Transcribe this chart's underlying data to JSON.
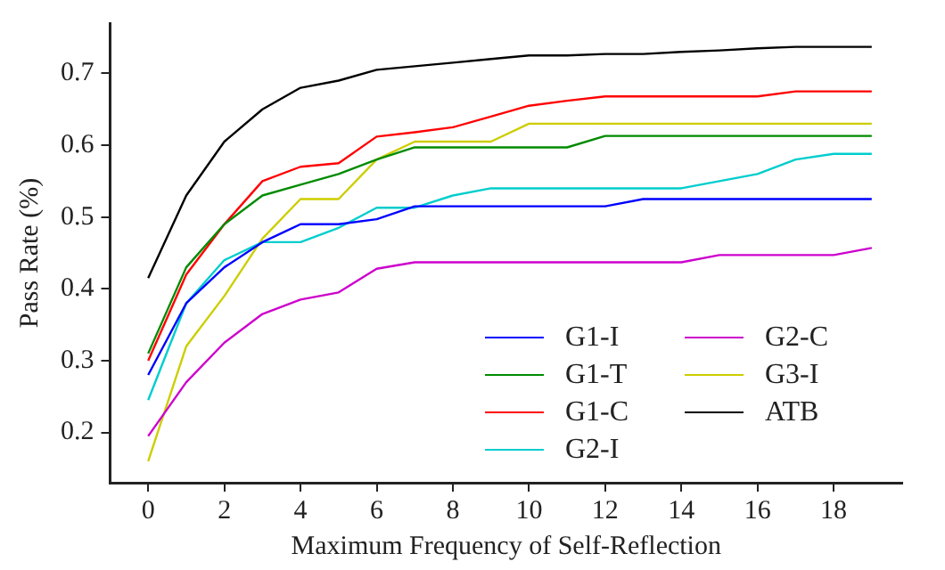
{
  "chart_data": {
    "type": "line",
    "xlabel": "Maximum Frequency of Self-Reflection",
    "ylabel": "Pass Rate (%)",
    "x": [
      0,
      1,
      2,
      3,
      4,
      5,
      6,
      7,
      8,
      9,
      10,
      11,
      12,
      13,
      14,
      15,
      16,
      17,
      18,
      19
    ],
    "xlim": [
      -1,
      19.8
    ],
    "xticks": [
      0,
      2,
      4,
      6,
      8,
      10,
      12,
      14,
      16,
      18
    ],
    "ylim": [
      0.13,
      0.77
    ],
    "yticks": [
      0.2,
      0.3,
      0.4,
      0.5,
      0.6,
      0.7
    ],
    "grid": false,
    "legend": "bottom right",
    "marker": "none",
    "line_style": "solid",
    "series": [
      {
        "name": "G1-I",
        "color": "#0000ff",
        "values": [
          0.28,
          0.38,
          0.43,
          0.465,
          0.49,
          0.49,
          0.497,
          0.515,
          0.515,
          0.515,
          0.515,
          0.515,
          0.515,
          0.525,
          0.525,
          0.525,
          0.525,
          0.525,
          0.525,
          0.525
        ]
      },
      {
        "name": "G1-T",
        "color": "#008b00",
        "values": [
          0.31,
          0.43,
          0.49,
          0.53,
          0.545,
          0.56,
          0.58,
          0.597,
          0.597,
          0.597,
          0.597,
          0.597,
          0.613,
          0.613,
          0.613,
          0.613,
          0.613,
          0.613,
          0.613,
          0.613
        ]
      },
      {
        "name": "G1-C",
        "color": "#ff0000",
        "values": [
          0.3,
          0.42,
          0.49,
          0.55,
          0.57,
          0.575,
          0.612,
          0.618,
          0.625,
          0.64,
          0.655,
          0.662,
          0.668,
          0.668,
          0.668,
          0.668,
          0.668,
          0.675,
          0.675,
          0.675
        ]
      },
      {
        "name": "G2-I",
        "color": "#00cdcd",
        "values": [
          0.245,
          0.38,
          0.44,
          0.465,
          0.465,
          0.485,
          0.513,
          0.513,
          0.53,
          0.54,
          0.54,
          0.54,
          0.54,
          0.54,
          0.54,
          0.55,
          0.56,
          0.58,
          0.588,
          0.588
        ]
      },
      {
        "name": "G2-C",
        "color": "#cd00cd",
        "values": [
          0.195,
          0.27,
          0.325,
          0.365,
          0.385,
          0.395,
          0.428,
          0.437,
          0.437,
          0.437,
          0.437,
          0.437,
          0.437,
          0.437,
          0.437,
          0.447,
          0.447,
          0.447,
          0.447,
          0.457
        ]
      },
      {
        "name": "G3-I",
        "color": "#cdcd00",
        "values": [
          0.16,
          0.32,
          0.39,
          0.47,
          0.525,
          0.525,
          0.58,
          0.605,
          0.605,
          0.605,
          0.63,
          0.63,
          0.63,
          0.63,
          0.63,
          0.63,
          0.63,
          0.63,
          0.63,
          0.63
        ]
      },
      {
        "name": "ATB",
        "color": "#000000",
        "values": [
          0.415,
          0.53,
          0.605,
          0.65,
          0.68,
          0.69,
          0.705,
          0.71,
          0.715,
          0.72,
          0.725,
          0.725,
          0.727,
          0.727,
          0.73,
          0.732,
          0.735,
          0.737,
          0.737,
          0.737
        ]
      }
    ]
  }
}
